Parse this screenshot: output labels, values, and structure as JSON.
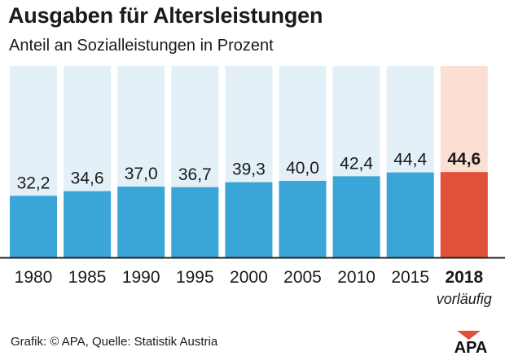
{
  "header": {
    "title": "Ausgaben für Altersleistungen",
    "subtitle": "Anteil an Sozialleistungen in Prozent"
  },
  "footer": {
    "source": "Grafik: © APA, Quelle: Statistik Austria",
    "logo_text": "APA"
  },
  "colors": {
    "bar": "#3aa6d8",
    "bar_background": "#e4f0f8",
    "highlight_bar": "#e0503a",
    "highlight_background": "#fbdfd3",
    "axis": "#222222",
    "logo_triangle": "#e0503a"
  },
  "chart_data": {
    "type": "bar",
    "title": "Ausgaben für Altersleistungen",
    "subtitle": "Anteil an Sozialleistungen in Prozent",
    "xlabel": "",
    "ylabel": "",
    "ylim": [
      0,
      100
    ],
    "grid": false,
    "categories": [
      "1980",
      "1985",
      "1990",
      "1995",
      "2000",
      "2005",
      "2010",
      "2015",
      "2018"
    ],
    "values": [
      32.2,
      34.6,
      37.0,
      36.7,
      39.3,
      40.0,
      42.4,
      44.4,
      44.6
    ],
    "value_labels": [
      "32,2",
      "34,6",
      "37,0",
      "36,7",
      "39,3",
      "40,0",
      "42,4",
      "44,4",
      "44,6"
    ],
    "highlight_index": 8,
    "annotations": [
      {
        "category": "2018",
        "text": "vorläufig"
      }
    ]
  }
}
